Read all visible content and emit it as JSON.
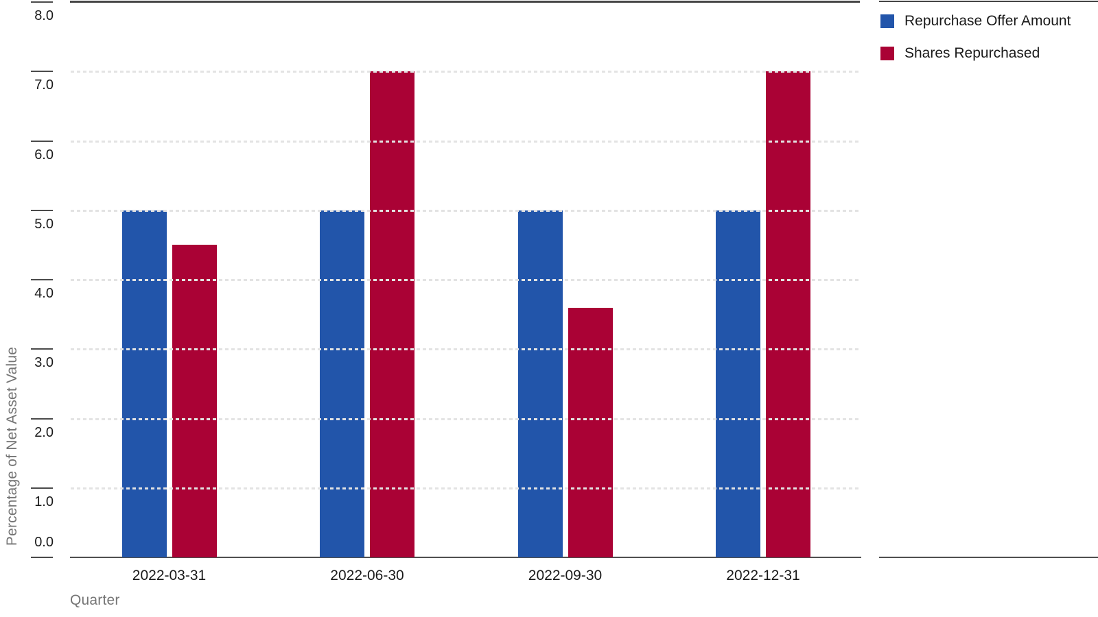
{
  "chart_data": {
    "type": "bar",
    "title": "",
    "categories": [
      "2022-03-31",
      "2022-06-30",
      "2022-09-30",
      "2022-12-31"
    ],
    "series": [
      {
        "name": "Repurchase Offer Amount",
        "color": "#2255AA",
        "values": [
          5.0,
          5.0,
          5.0,
          5.0
        ]
      },
      {
        "name": "Shares Repurchased",
        "color": "#AA0235",
        "values": [
          4.5,
          7.0,
          3.6,
          7.0
        ]
      }
    ],
    "xlabel": "Quarter",
    "ylabel": "Percentage of Net Asset Value",
    "ylim": [
      0,
      8
    ],
    "ytick_step": 1.0,
    "ytick_labels": [
      "0.0",
      "1.0",
      "2.0",
      "3.0",
      "4.0",
      "5.0",
      "6.0",
      "7.0",
      "8.0"
    ],
    "grid": "horizontal-dashed",
    "gridline_color": "#e3e3e3",
    "axis_line_color": "#454545",
    "tick_label_color": "#1a1a1a",
    "axis_title_color": "#757575",
    "legend_position": "top-right"
  }
}
